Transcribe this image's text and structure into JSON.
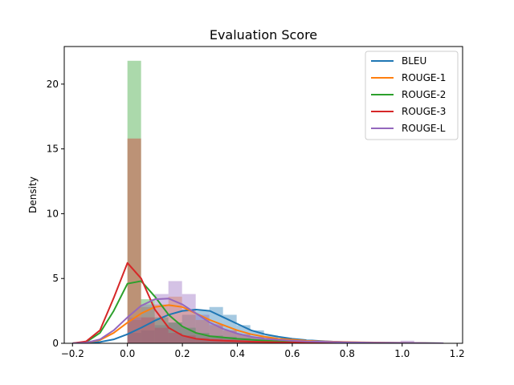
{
  "chart_data": {
    "type": "histogram+kde",
    "title": "Evaluation Score",
    "xlabel": "",
    "ylabel": "Density",
    "xlim": [
      -0.23,
      1.22
    ],
    "ylim": [
      0,
      22.9
    ],
    "xticks": [
      -0.2,
      0.0,
      0.2,
      0.4,
      0.6,
      0.8,
      1.0,
      1.2
    ],
    "xtick_labels": [
      "−0.2",
      "0.0",
      "0.2",
      "0.4",
      "0.6",
      "0.8",
      "1.0",
      "1.2"
    ],
    "yticks": [
      0,
      5,
      10,
      15,
      20
    ],
    "ytick_labels": [
      "0",
      "5",
      "10",
      "15",
      "20"
    ],
    "grid": false,
    "legend_position": "upper right",
    "bin_width": 0.0497,
    "x": [
      -0.2,
      -0.15,
      -0.1,
      -0.05,
      0.0,
      0.05,
      0.1,
      0.15,
      0.2,
      0.25,
      0.3,
      0.35,
      0.4,
      0.45,
      0.5,
      0.55,
      0.6,
      0.65,
      0.7,
      0.75,
      0.8,
      0.85,
      0.9,
      0.95,
      1.0,
      1.05,
      1.1,
      1.15
    ],
    "series": [
      {
        "name": "BLEU",
        "color": "#1f77b4",
        "kde": [
          0,
          0.02,
          0.1,
          0.3,
          0.7,
          1.2,
          1.75,
          2.2,
          2.5,
          2.6,
          2.5,
          2.0,
          1.5,
          1.0,
          0.7,
          0.5,
          0.35,
          0.25,
          0.18,
          0.12,
          0.08,
          0.06,
          0.05,
          0.04,
          0.03,
          0.02,
          0.01,
          0
        ],
        "bins": [
          {
            "x": 0.0,
            "h": 0.8
          },
          {
            "x": 0.0497,
            "h": 1.0
          },
          {
            "x": 0.0994,
            "h": 1.4
          },
          {
            "x": 0.1491,
            "h": 1.6
          },
          {
            "x": 0.1988,
            "h": 2.2
          },
          {
            "x": 0.2485,
            "h": 2.5
          },
          {
            "x": 0.2982,
            "h": 2.8
          },
          {
            "x": 0.3479,
            "h": 2.2
          },
          {
            "x": 0.3976,
            "h": 1.4
          },
          {
            "x": 0.4473,
            "h": 1.0
          },
          {
            "x": 0.497,
            "h": 0.6
          },
          {
            "x": 0.5467,
            "h": 0.4
          },
          {
            "x": 0.5964,
            "h": 0.3
          },
          {
            "x": 0.6461,
            "h": 0.2
          },
          {
            "x": 0.6958,
            "h": 0.15
          },
          {
            "x": 0.7455,
            "h": 0.1
          },
          {
            "x": 0.7952,
            "h": 0.1
          },
          {
            "x": 0.8449,
            "h": 0.1
          },
          {
            "x": 0.8946,
            "h": 0.05
          },
          {
            "x": 0.9443,
            "h": 0.1
          },
          {
            "x": 0.994,
            "h": 0.05
          }
        ]
      },
      {
        "name": "ROUGE-1",
        "color": "#ff7f0e",
        "kde": [
          0,
          0.05,
          0.25,
          0.8,
          1.6,
          2.3,
          2.8,
          2.95,
          2.8,
          2.3,
          1.8,
          1.4,
          1.0,
          0.7,
          0.5,
          0.35,
          0.28,
          0.2,
          0.15,
          0.12,
          0.1,
          0.08,
          0.06,
          0.05,
          0.04,
          0.02,
          0.01,
          0
        ],
        "bins": [
          {
            "x": 0.0,
            "h": 1.8
          },
          {
            "x": 0.0497,
            "h": 2.8
          },
          {
            "x": 0.0994,
            "h": 3.0
          },
          {
            "x": 0.1491,
            "h": 3.6
          },
          {
            "x": 0.1988,
            "h": 2.6
          },
          {
            "x": 0.2485,
            "h": 1.8
          },
          {
            "x": 0.2982,
            "h": 1.4
          },
          {
            "x": 0.3479,
            "h": 1.0
          },
          {
            "x": 0.3976,
            "h": 0.7
          },
          {
            "x": 0.4473,
            "h": 0.5
          },
          {
            "x": 0.497,
            "h": 0.4
          },
          {
            "x": 0.5467,
            "h": 0.3
          },
          {
            "x": 0.5964,
            "h": 0.3
          },
          {
            "x": 0.6461,
            "h": 0.2
          },
          {
            "x": 0.6958,
            "h": 0.15
          },
          {
            "x": 0.7455,
            "h": 0.1
          },
          {
            "x": 0.7952,
            "h": 0.1
          },
          {
            "x": 0.8449,
            "h": 0.1
          },
          {
            "x": 0.8946,
            "h": 0.05
          },
          {
            "x": 0.9443,
            "h": 0.05
          },
          {
            "x": 0.994,
            "h": 0.05
          }
        ]
      },
      {
        "name": "ROUGE-2",
        "color": "#2ca02c",
        "kde": [
          0,
          0.1,
          0.8,
          2.5,
          4.6,
          4.8,
          3.6,
          2.2,
          1.3,
          0.8,
          0.55,
          0.45,
          0.35,
          0.28,
          0.2,
          0.15,
          0.12,
          0.1,
          0.08,
          0.06,
          0.05,
          0.04,
          0.03,
          0.02,
          0.015,
          0.01,
          0.005,
          0
        ],
        "bins": [
          {
            "x": 0.0,
            "h": 21.8
          },
          {
            "x": 0.0497,
            "h": 3.4
          },
          {
            "x": 0.0994,
            "h": 2.0
          },
          {
            "x": 0.1491,
            "h": 1.6
          },
          {
            "x": 0.1988,
            "h": 1.2
          },
          {
            "x": 0.2485,
            "h": 0.8
          },
          {
            "x": 0.2982,
            "h": 0.6
          },
          {
            "x": 0.3479,
            "h": 0.5
          },
          {
            "x": 0.3976,
            "h": 0.4
          },
          {
            "x": 0.4473,
            "h": 0.3
          },
          {
            "x": 0.497,
            "h": 0.3
          },
          {
            "x": 0.5467,
            "h": 0.2
          },
          {
            "x": 0.5964,
            "h": 0.2
          },
          {
            "x": 0.6461,
            "h": 0.15
          },
          {
            "x": 0.6958,
            "h": 0.1
          },
          {
            "x": 0.7455,
            "h": 0.1
          },
          {
            "x": 0.7952,
            "h": 0.05
          },
          {
            "x": 0.8449,
            "h": 0.05
          },
          {
            "x": 0.8946,
            "h": 0.05
          },
          {
            "x": 0.9443,
            "h": 0.05
          },
          {
            "x": 0.994,
            "h": 0.05
          }
        ]
      },
      {
        "name": "ROUGE-3",
        "color": "#d62728",
        "kde": [
          0,
          0.15,
          1.0,
          3.5,
          6.2,
          5.0,
          2.6,
          1.2,
          0.6,
          0.35,
          0.25,
          0.2,
          0.16,
          0.12,
          0.1,
          0.08,
          0.07,
          0.06,
          0.05,
          0.04,
          0.03,
          0.025,
          0.02,
          0.015,
          0.01,
          0.005,
          0.002,
          0
        ],
        "bins": [
          {
            "x": 0.0,
            "h": 15.8
          },
          {
            "x": 0.0497,
            "h": 2.0
          },
          {
            "x": 0.0994,
            "h": 1.2
          },
          {
            "x": 0.1491,
            "h": 0.8
          },
          {
            "x": 0.1988,
            "h": 0.6
          },
          {
            "x": 0.2485,
            "h": 0.4
          },
          {
            "x": 0.2982,
            "h": 0.35
          },
          {
            "x": 0.3479,
            "h": 0.3
          },
          {
            "x": 0.3976,
            "h": 0.25
          },
          {
            "x": 0.4473,
            "h": 0.2
          },
          {
            "x": 0.497,
            "h": 0.15
          },
          {
            "x": 0.5467,
            "h": 0.15
          },
          {
            "x": 0.5964,
            "h": 0.1
          },
          {
            "x": 0.6461,
            "h": 0.1
          },
          {
            "x": 0.6958,
            "h": 0.08
          },
          {
            "x": 0.7455,
            "h": 0.06
          },
          {
            "x": 0.7952,
            "h": 0.05
          },
          {
            "x": 0.8449,
            "h": 0.05
          },
          {
            "x": 0.8946,
            "h": 0.04
          },
          {
            "x": 0.9443,
            "h": 0.04
          },
          {
            "x": 0.994,
            "h": 0.1
          }
        ]
      },
      {
        "name": "ROUGE-L",
        "color": "#9467bd",
        "kde": [
          0,
          0.05,
          0.3,
          1.0,
          2.0,
          2.9,
          3.4,
          3.45,
          3.0,
          2.3,
          1.6,
          1.1,
          0.75,
          0.5,
          0.35,
          0.27,
          0.2,
          0.15,
          0.12,
          0.1,
          0.08,
          0.06,
          0.05,
          0.04,
          0.03,
          0.02,
          0.01,
          0
        ],
        "bins": [
          {
            "x": 0.0,
            "h": 2.0
          },
          {
            "x": 0.0497,
            "h": 3.0
          },
          {
            "x": 0.0994,
            "h": 3.8
          },
          {
            "x": 0.1491,
            "h": 4.8
          },
          {
            "x": 0.1988,
            "h": 3.8
          },
          {
            "x": 0.2485,
            "h": 2.2
          },
          {
            "x": 0.2982,
            "h": 1.5
          },
          {
            "x": 0.3479,
            "h": 1.0
          },
          {
            "x": 0.3976,
            "h": 0.7
          },
          {
            "x": 0.4473,
            "h": 0.5
          },
          {
            "x": 0.497,
            "h": 0.4
          },
          {
            "x": 0.5467,
            "h": 0.3
          },
          {
            "x": 0.5964,
            "h": 0.2
          },
          {
            "x": 0.6461,
            "h": 0.2
          },
          {
            "x": 0.6958,
            "h": 0.15
          },
          {
            "x": 0.7455,
            "h": 0.1
          },
          {
            "x": 0.7952,
            "h": 0.1
          },
          {
            "x": 0.8449,
            "h": 0.1
          },
          {
            "x": 0.8946,
            "h": 0.05
          },
          {
            "x": 0.9443,
            "h": 0.1
          },
          {
            "x": 0.994,
            "h": 0.2
          }
        ]
      }
    ]
  }
}
